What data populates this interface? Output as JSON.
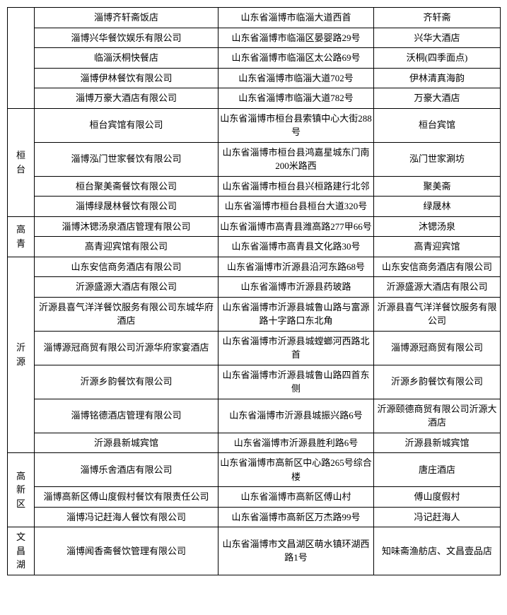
{
  "groups": [
    {
      "region": "",
      "rows": [
        {
          "company": "淄博齐轩斋饭店",
          "address": "山东省淄博市临淄大道西首",
          "name": "齐轩斋"
        },
        {
          "company": "淄博兴华餐饮娱乐有限公司",
          "address": "山东省淄博市临淄区晏婴路29号",
          "name": "兴华大酒店"
        },
        {
          "company": "临淄沃桐快餐店",
          "address": "山东省淄博市临淄区太公路69号",
          "name": "沃桐(四季面点)"
        },
        {
          "company": "淄博伊林餐饮有限公司",
          "address": "山东省淄博市临淄大道702号",
          "name": "伊林清真海韵"
        },
        {
          "company": "淄博万豪大酒店有限公司",
          "address": "山东省淄博市临淄大道782号",
          "name": "万豪大酒店"
        }
      ]
    },
    {
      "region": "桓台",
      "rows": [
        {
          "company": "桓台宾馆有限公司",
          "address": "山东省淄博市桓台县索镇中心大街288号",
          "name": "桓台宾馆"
        },
        {
          "company": "淄博泓门世家餐饮有限公司",
          "address": "山东省淄博市桓台县鸿嘉星城东门南200米路西",
          "name": "泓门世家涮坊"
        },
        {
          "company": "桓台聚美斋餐饮有限公司",
          "address": "山东省淄博市桓台县兴桓路建行北邻",
          "name": "聚美斋"
        },
        {
          "company": "淄博绿晟林餐饮有限公司",
          "address": "山东省淄博市桓台县桓台大道320号",
          "name": "绿晟林"
        }
      ]
    },
    {
      "region": "高青",
      "rows": [
        {
          "company": "淄博沐锶汤泉酒店管理有限公司",
          "address": "山东省淄博市高青县潍高路277甲66号",
          "name": "沐锶汤泉"
        },
        {
          "company": "高青迎宾馆有限公司",
          "address": "山东省淄博市高青县文化路30号",
          "name": "高青迎宾馆"
        }
      ]
    },
    {
      "region": "沂源",
      "rows": [
        {
          "company": "山东安信商务酒店有限公司",
          "address": "山东省淄博市沂源县沿河东路68号",
          "name": "山东安信商务酒店有限公司"
        },
        {
          "company": "沂源盛源大酒店有限公司",
          "address": "山东省淄博市沂源县药玻路",
          "name": "沂源盛源大酒店有限公司"
        },
        {
          "company": "沂源县喜气洋洋餐饮服务有限公司东城华府酒店",
          "address": "山东省淄博市沂源县城鲁山路与富源路十字路口东北角",
          "name": "沂源县喜气洋洋餐饮服务有限公司"
        },
        {
          "company": "淄博源冠商贸有限公司沂源华府家宴酒店",
          "address": "山东省淄博市沂源县城螳螂河西路北首",
          "name": "淄博源冠商贸有限公司"
        },
        {
          "company": "沂源乡韵餐饮有限公司",
          "address": "山东省淄博市沂源县城鲁山路四首东侧",
          "name": "沂源乡韵餐饮有限公司"
        },
        {
          "company": "淄博铭德酒店管理有限公司",
          "address": "山东省淄博市沂源县城振兴路6号",
          "name": "沂源颐德商贸有限公司沂源大酒店"
        },
        {
          "company": "沂源县新城宾馆",
          "address": "山东省淄博市沂源县胜利路6号",
          "name": "沂源县新城宾馆"
        }
      ]
    },
    {
      "region": "高新区",
      "rows": [
        {
          "company": "淄博乐舍酒店有限公司",
          "address": "山东省淄博市高新区中心路265号综合楼",
          "name": "唐庄酒店"
        },
        {
          "company": "淄博高新区傅山度假村餐饮有限责任公司",
          "address": "山东省淄博市高新区傅山村",
          "name": "傅山度假村"
        },
        {
          "company": "淄博冯记赶海人餐饮有限公司",
          "address": "山东省淄博市高新区万杰路99号",
          "name": "冯记赶海人"
        }
      ]
    },
    {
      "region": "文昌湖",
      "rows": [
        {
          "company": "淄博闻香斋餐饮管理有限公司",
          "address": "山东省淄博市文昌湖区萌水镇环湖西路1号",
          "name": "知味斋渔舫店、文昌壹品店"
        }
      ]
    }
  ]
}
